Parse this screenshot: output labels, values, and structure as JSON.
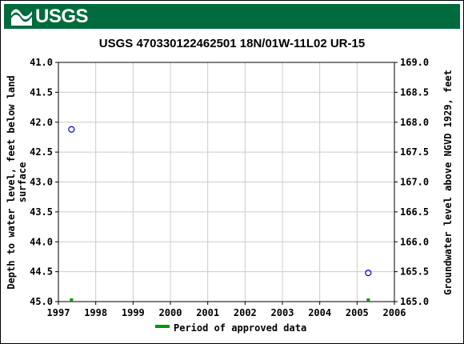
{
  "header": {
    "logo_text": "USGS"
  },
  "chart_data": {
    "type": "scatter",
    "title": "USGS 470330122462501 18N/01W-11L02 UR-15",
    "ylabel_left": "Depth to water level, feet below land surface",
    "ylabel_left_lines": [
      "Depth to water level, feet below land",
      "surface"
    ],
    "ylabel_right": "Groundwater level above NGVD 1929, feet",
    "x_ticks": [
      "1997",
      "1998",
      "1999",
      "2000",
      "2001",
      "2002",
      "2003",
      "2004",
      "2005",
      "2006"
    ],
    "xlim": [
      1997,
      2006
    ],
    "y_left_ticks": [
      "41.0",
      "41.5",
      "42.0",
      "42.5",
      "43.0",
      "43.5",
      "44.0",
      "44.5",
      "45.0"
    ],
    "ylim_left": [
      41.0,
      45.0
    ],
    "y_left_inverted": true,
    "y_right_ticks": [
      "169.0",
      "168.5",
      "168.0",
      "167.5",
      "167.0",
      "166.5",
      "166.0",
      "165.5",
      "165.0"
    ],
    "ylim_right": [
      165.0,
      169.0
    ],
    "grid": true,
    "series": [
      {
        "x": [
          1997.35,
          2005.3
        ],
        "y": [
          42.12,
          44.52
        ],
        "color": "#0000cc",
        "marker": "open-circle"
      }
    ],
    "approved_periods": [
      1997.35,
      2005.3
    ],
    "approved_color": "#009900",
    "legend": {
      "label": "Period of approved data",
      "placement": "bottom-center"
    }
  }
}
